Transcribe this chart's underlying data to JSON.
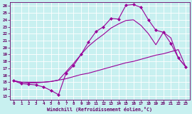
{
  "xlabel": "Windchill (Refroidissement éolien,°C)",
  "bg_color": "#c8f0f0",
  "line_color": "#990099",
  "xlim": [
    -0.5,
    23.5
  ],
  "ylim": [
    12.5,
    26.5
  ],
  "yticks": [
    13,
    14,
    15,
    16,
    17,
    18,
    19,
    20,
    21,
    22,
    23,
    24,
    25,
    26
  ],
  "xticks": [
    0,
    1,
    2,
    3,
    4,
    5,
    6,
    7,
    8,
    9,
    10,
    11,
    12,
    13,
    14,
    15,
    16,
    17,
    18,
    19,
    20,
    21,
    22,
    23
  ],
  "line1_x": [
    0,
    1,
    2,
    3,
    4,
    5,
    6,
    7,
    8,
    9,
    10,
    11,
    12,
    13,
    14,
    15,
    16,
    17,
    18,
    19,
    20,
    21,
    22,
    23
  ],
  "line1_y": [
    15.2,
    14.8,
    14.7,
    14.6,
    14.3,
    13.8,
    13.2,
    16.3,
    17.4,
    19.0,
    20.8,
    22.3,
    23.0,
    24.2,
    24.1,
    26.1,
    26.2,
    25.8,
    24.0,
    22.5,
    22.2,
    20.6,
    18.5,
    17.2
  ],
  "line2_x": [
    0,
    1,
    2,
    3,
    4,
    5,
    6,
    7,
    8,
    9,
    10,
    11,
    12,
    13,
    14,
    15,
    16,
    17,
    18,
    19,
    20,
    21,
    22,
    23
  ],
  "line2_y": [
    15.2,
    15.0,
    15.0,
    15.0,
    15.0,
    15.1,
    15.3,
    15.5,
    15.8,
    16.1,
    16.3,
    16.6,
    16.9,
    17.2,
    17.5,
    17.8,
    18.0,
    18.3,
    18.6,
    18.9,
    19.1,
    19.4,
    19.7,
    17.2
  ],
  "line3_x": [
    0,
    1,
    2,
    3,
    4,
    5,
    6,
    7,
    8,
    9,
    10,
    11,
    12,
    13,
    14,
    15,
    16,
    17,
    18,
    19,
    20,
    21,
    22,
    23
  ],
  "line3_y": [
    15.2,
    15.0,
    14.9,
    14.9,
    15.0,
    15.1,
    15.3,
    16.5,
    17.7,
    19.0,
    20.2,
    21.1,
    21.9,
    22.8,
    23.4,
    23.9,
    24.0,
    23.2,
    22.0,
    20.4,
    22.2,
    21.4,
    18.5,
    17.2
  ]
}
